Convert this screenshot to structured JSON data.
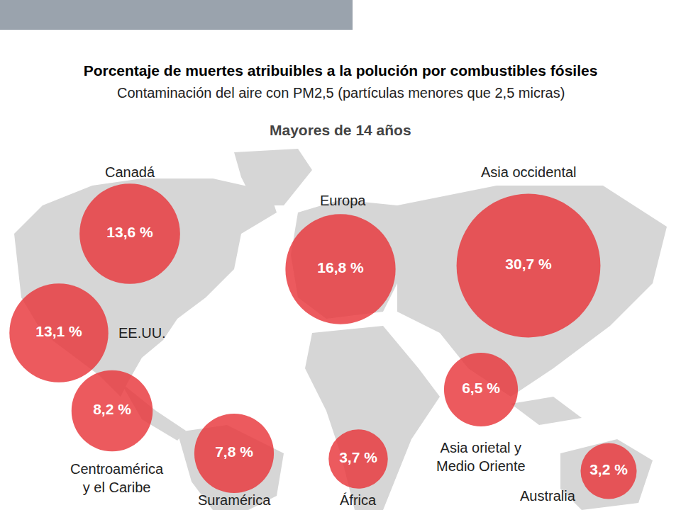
{
  "chart_data": {
    "type": "bubble",
    "title": "Porcentaje de muertes atribuibles a la polución por combustibles fósiles",
    "subtitle": "Contaminación del aire con PM2,5 (partículas menores que 2,5 micras)",
    "annotations": [
      "Mayores de 14 años"
    ],
    "categories": [
      "Canadá",
      "EE.UU.",
      "Centroamérica y el Caribe",
      "Suramérica",
      "Europa",
      "África",
      "Asia occidental",
      "Asia orietal y Medio Oriente",
      "Australia"
    ],
    "values": [
      13.6,
      13.1,
      8.2,
      7.8,
      16.8,
      3.7,
      30.7,
      6.5,
      3.2
    ],
    "value_labels": [
      "13,6 %",
      "13,1 %",
      "8,2 %",
      "7,8 %",
      "16,8 %",
      "3,7 %",
      "30,7 %",
      "6,5 %",
      "3,2 %"
    ],
    "color": "#e8363a",
    "data_labels": true,
    "tick_labels": false
  }
}
